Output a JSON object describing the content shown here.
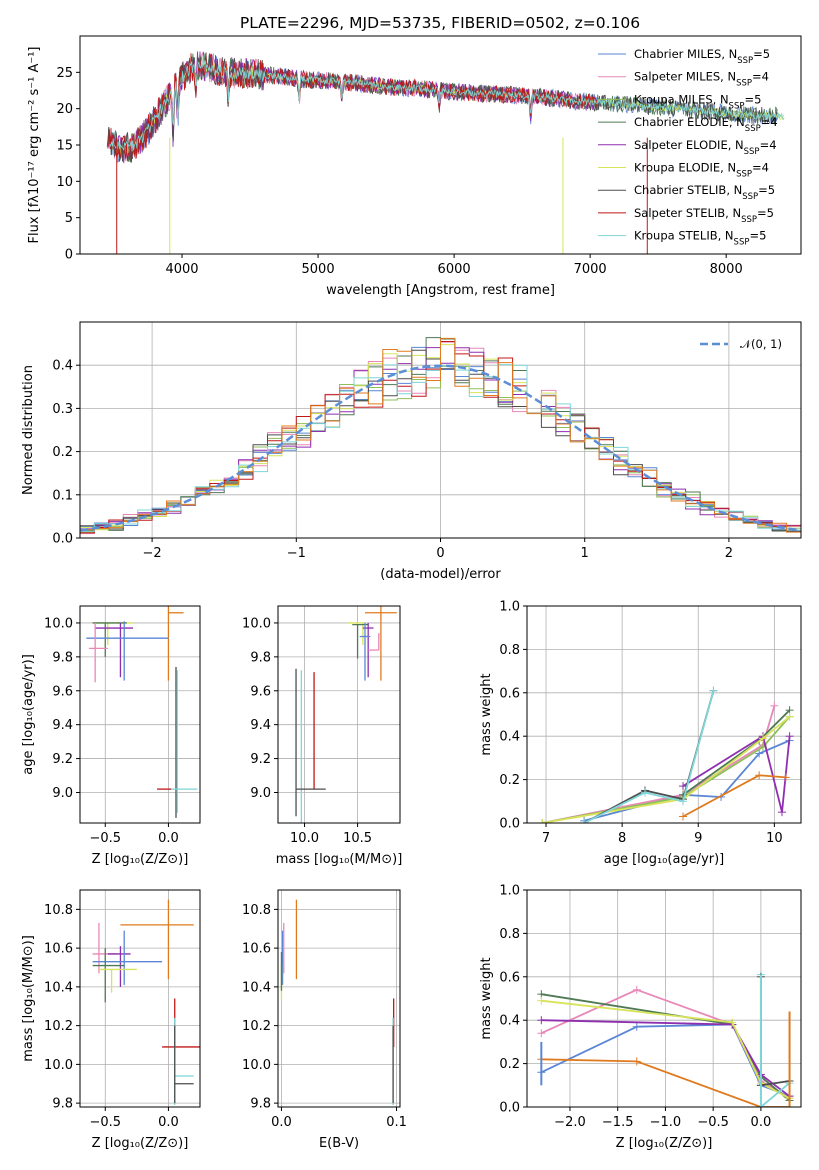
{
  "title": "PLATE=2296, MJD=53735, FIBERID=0502, z=0.106",
  "colors": {
    "Chabrier MILES": "#5b86d6",
    "Salpeter MILES": "#e887b8",
    "Kroupa MILES": "#8fbf5a",
    "Chabrier ELODIE": "#4f7a55",
    "Salpeter ELODIE": "#8e2fb0",
    "Kroupa ELODIE": "#d7e35a",
    "Chabrier STELIB": "#4d4d4d",
    "Salpeter STELIB": "#c01818",
    "Kroupa STELIB": "#7fd5d8",
    "orange": "#e07a1f",
    "gauss": "#5b8ed6",
    "grid": "#b0b0b0"
  },
  "chart_data": [
    {
      "id": "spectrum",
      "type": "line",
      "xlabel": "wavelength [Angstrom, rest frame]",
      "ylabel": "Flux [fλ10⁻¹⁷ erg cm⁻² s⁻¹ A⁻¹]",
      "xlim": [
        3250,
        8550
      ],
      "ylim": [
        0,
        30
      ],
      "xticks": [
        4000,
        5000,
        6000,
        7000,
        8000
      ],
      "yticks": [
        0,
        5,
        10,
        15,
        20,
        25
      ],
      "grid": false,
      "legend_position": "top-right",
      "continuum": {
        "x": [
          3450,
          3550,
          3650,
          3750,
          3850,
          3950,
          4050,
          4150,
          4300,
          4500,
          4700,
          4900,
          5100,
          5300,
          5500,
          5700,
          5900,
          6100,
          6300,
          6500,
          6700,
          6900,
          7100,
          7300,
          7500,
          7700,
          7900,
          8100,
          8300
        ],
        "y": [
          15.5,
          14.5,
          14.8,
          17,
          20,
          23,
          25.5,
          26,
          25,
          24.8,
          24.5,
          24,
          23.8,
          23.5,
          23,
          22.8,
          22.5,
          22.2,
          22,
          21.8,
          21.5,
          21,
          20.8,
          20.5,
          20.2,
          20,
          19.6,
          19.2,
          19
        ]
      },
      "series": [
        {
          "name": "Chabrier MILES",
          "nssp": "5"
        },
        {
          "name": "Salpeter MILES",
          "nssp": "4"
        },
        {
          "name": "Kroupa MILES",
          "nssp": "5"
        },
        {
          "name": "Chabrier ELODIE",
          "nssp": "4"
        },
        {
          "name": "Salpeter ELODIE",
          "nssp": "4"
        },
        {
          "name": "Kroupa ELODIE",
          "nssp": "4"
        },
        {
          "name": "Chabrier STELIB",
          "nssp": "5"
        },
        {
          "name": "Salpeter STELIB",
          "nssp": "5"
        },
        {
          "name": "Kroupa STELIB",
          "nssp": "5"
        }
      ]
    },
    {
      "id": "residuals",
      "type": "histogram",
      "xlabel": "(data-model)/error",
      "ylabel": "Normed distribution",
      "xlim": [
        -2.5,
        2.5
      ],
      "ylim": [
        0,
        0.5
      ],
      "xticks": [
        -2,
        -1,
        0,
        1,
        2
      ],
      "yticks": [
        0.0,
        0.1,
        0.2,
        0.3,
        0.4
      ],
      "grid": true,
      "legend": "𝒩(0, 1)",
      "legend_position": "top-right",
      "bin_width": 0.1
    },
    {
      "id": "age_vs_Z",
      "type": "scatter",
      "xlabel": "Z [log₁₀(Z/Z⊙)]",
      "ylabel": "age  [log₁₀(age/yr)]",
      "xlim": [
        -0.7,
        0.25
      ],
      "ylim": [
        8.82,
        10.1
      ],
      "xticks": [
        -0.5,
        0.0
      ],
      "yticks": [
        9.0,
        9.2,
        9.4,
        9.6,
        9.8,
        10.0
      ],
      "grid": true,
      "points": [
        {
          "color": "orange",
          "x": 0.0,
          "xerr": [
            0.0,
            0.12
          ],
          "y": 10.06,
          "yerr": [
            0.4,
            0.06
          ]
        },
        {
          "color": "Kroupa ELODIE",
          "x": -0.48,
          "xerr": [
            0.12,
            0.2
          ],
          "y": 10.0,
          "yerr": [
            0.13,
            0.0
          ]
        },
        {
          "color": "Chabrier ELODIE",
          "x": -0.5,
          "xerr": [
            0.1,
            0.17
          ],
          "y": 10.0,
          "yerr": [
            0.2,
            0.0
          ]
        },
        {
          "color": "Salpeter ELODIE",
          "x": -0.38,
          "xerr": [
            0.2,
            0.1
          ],
          "y": 9.97,
          "yerr": [
            0.29,
            0.03
          ]
        },
        {
          "color": "Chabrier MILES",
          "x": -0.35,
          "xerr": [
            0.3,
            0.35
          ],
          "y": 9.91,
          "yerr": [
            0.25,
            0.1
          ]
        },
        {
          "color": "Salpeter MILES",
          "x": -0.58,
          "xerr": [
            0.05,
            0.1
          ],
          "y": 9.85,
          "yerr": [
            0.2,
            0.15
          ]
        },
        {
          "color": "Salpeter STELIB",
          "x": 0.03,
          "xerr": [
            0.12,
            0.0
          ],
          "y": 9.02,
          "yerr": [
            0.0,
            0.0
          ]
        },
        {
          "color": "Chabrier STELIB",
          "x": 0.06,
          "xerr": [
            0.0,
            0.0
          ],
          "y": 9.02,
          "yerr": [
            0.17,
            0.72
          ]
        },
        {
          "color": "Kroupa STELIB",
          "x": 0.07,
          "xerr": [
            0.05,
            0.16
          ],
          "y": 9.02,
          "yerr": [
            0.14,
            0.7
          ]
        }
      ]
    },
    {
      "id": "age_vs_mass",
      "type": "scatter",
      "xlabel": "mass [log₁₀(M/M⊙)]",
      "xlim": [
        9.75,
        10.9
      ],
      "ylim": [
        8.82,
        10.1
      ],
      "xticks": [
        10.0,
        10.5
      ],
      "yticks": [
        9.0,
        9.2,
        9.4,
        9.6,
        9.8,
        10.0
      ],
      "grid": true,
      "points": [
        {
          "color": "orange",
          "x": 10.72,
          "xerr": [
            0.15,
            0.15
          ],
          "y": 10.06,
          "yerr": [
            0.4,
            0.06
          ]
        },
        {
          "color": "Kroupa ELODIE",
          "x": 10.55,
          "xerr": [
            0.15,
            0.0
          ],
          "y": 10.0,
          "yerr": [
            0.13,
            0.0
          ]
        },
        {
          "color": "Chabrier ELODIE",
          "x": 10.5,
          "xerr": [
            0.05,
            0.1
          ],
          "y": 9.99,
          "yerr": [
            0.2,
            0.0
          ]
        },
        {
          "color": "Salpeter ELODIE",
          "x": 10.6,
          "xerr": [
            0.05,
            0.05
          ],
          "y": 9.97,
          "yerr": [
            0.29,
            0.03
          ]
        },
        {
          "color": "Chabrier MILES",
          "x": 10.57,
          "xerr": [
            0.05,
            0.05
          ],
          "y": 9.92,
          "yerr": [
            0.26,
            0.08
          ]
        },
        {
          "color": "Salpeter MILES",
          "x": 10.7,
          "xerr": [
            0.1,
            0.0
          ],
          "y": 9.84,
          "yerr": [
            0.0,
            0.1
          ]
        },
        {
          "color": "Salpeter STELIB",
          "x": 10.09,
          "xerr": [
            0.0,
            0.0
          ],
          "y": 9.02,
          "yerr": [
            0.0,
            0.69
          ]
        },
        {
          "color": "Chabrier STELIB",
          "x": 9.92,
          "xerr": [
            0.0,
            0.0
          ],
          "y": 9.02,
          "yerr": [
            0.16,
            0.71
          ]
        },
        {
          "color": "Kroupa STELIB",
          "x": 9.97,
          "xerr": [
            0.0,
            0.0
          ],
          "y": 9.02,
          "yerr": [
            0.2,
            0.7
          ]
        },
        {
          "color": "Chabrier STELIB",
          "x": 10.05,
          "xerr": [
            0.13,
            0.15
          ],
          "y": 9.02,
          "yerr": [
            0.0,
            0.0
          ]
        }
      ]
    },
    {
      "id": "weight_vs_age",
      "type": "line",
      "xlabel": "age  [log₁₀(age/yr)]",
      "ylabel": "mass weight",
      "xlim": [
        6.75,
        10.35
      ],
      "ylim": [
        0,
        1.0
      ],
      "xticks": [
        7,
        8,
        9,
        10
      ],
      "yticks": [
        0.0,
        0.2,
        0.4,
        0.6,
        0.8,
        1.0
      ],
      "grid": true,
      "series": [
        {
          "color": "Chabrier MILES",
          "x": [
            7.5,
            8.8,
            9.3,
            9.8,
            10.2
          ],
          "y": [
            0.01,
            0.13,
            0.12,
            0.32,
            0.38
          ]
        },
        {
          "color": "Salpeter MILES",
          "x": [
            6.95,
            8.8,
            9.85,
            10.0
          ],
          "y": [
            0.0,
            0.13,
            0.36,
            0.54
          ]
        },
        {
          "color": "Kroupa MILES",
          "x": [
            6.95,
            8.8,
            9.85,
            10.2
          ],
          "y": [
            0.0,
            0.12,
            0.35,
            0.49
          ]
        },
        {
          "color": "Chabrier ELODIE",
          "x": [
            8.8,
            9.8,
            10.2
          ],
          "y": [
            0.13,
            0.38,
            0.52
          ]
        },
        {
          "color": "Salpeter ELODIE",
          "x": [
            8.8,
            9.85,
            10.1,
            10.2
          ],
          "y": [
            0.17,
            0.4,
            0.05,
            0.4
          ]
        },
        {
          "color": "Kroupa ELODIE",
          "x": [
            6.95,
            8.8,
            9.85,
            10.2
          ],
          "y": [
            0.0,
            0.11,
            0.39,
            0.49
          ]
        },
        {
          "color": "Chabrier STELIB",
          "x": [
            7.5,
            8.3,
            8.8,
            9.2
          ],
          "y": [
            0.0,
            0.15,
            0.11,
            0.61
          ]
        },
        {
          "color": "Kroupa STELIB",
          "x": [
            7.5,
            8.3,
            8.8,
            9.2
          ],
          "y": [
            0.0,
            0.14,
            0.1,
            0.61
          ]
        },
        {
          "color": "orange",
          "x": [
            8.8,
            9.8,
            10.15
          ],
          "y": [
            0.03,
            0.22,
            0.21
          ]
        }
      ]
    },
    {
      "id": "mass_vs_Z",
      "type": "scatter",
      "xlabel": "Z [log₁₀(Z/Z⊙)]",
      "ylabel": "mass [log₁₀(M/M⊙)]",
      "xlim": [
        -0.7,
        0.25
      ],
      "ylim": [
        9.78,
        10.9
      ],
      "xticks": [
        -0.5,
        0.0
      ],
      "yticks": [
        9.8,
        10.0,
        10.2,
        10.4,
        10.6,
        10.8
      ],
      "grid": true,
      "points": [
        {
          "color": "orange",
          "x": 0.0,
          "xerr": [
            0.38,
            0.2
          ],
          "y": 10.72,
          "yerr": [
            0.28,
            0.13
          ]
        },
        {
          "color": "Salpeter MILES",
          "x": -0.55,
          "xerr": [
            0.05,
            0.15
          ],
          "y": 10.57,
          "yerr": [
            0.1,
            0.16
          ]
        },
        {
          "color": "Salpeter ELODIE",
          "x": -0.38,
          "xerr": [
            0.1,
            0.08
          ],
          "y": 10.57,
          "yerr": [
            0.17,
            0.04
          ]
        },
        {
          "color": "Chabrier MILES",
          "x": -0.35,
          "xerr": [
            0.25,
            0.3
          ],
          "y": 10.53,
          "yerr": [
            0.12,
            0.16
          ]
        },
        {
          "color": "Chabrier ELODIE",
          "x": -0.5,
          "xerr": [
            0.1,
            0.15
          ],
          "y": 10.51,
          "yerr": [
            0.19,
            0.09
          ]
        },
        {
          "color": "Kroupa ELODIE",
          "x": -0.45,
          "xerr": [
            0.1,
            0.2
          ],
          "y": 10.49,
          "yerr": [
            0.12,
            0.0
          ]
        },
        {
          "color": "Salpeter STELIB",
          "x": 0.05,
          "xerr": [
            0.1,
            0.2
          ],
          "y": 10.09,
          "yerr": [
            0.0,
            0.25
          ]
        },
        {
          "color": "Kroupa STELIB",
          "x": 0.05,
          "xerr": [
            0.0,
            0.15
          ],
          "y": 9.94,
          "yerr": [
            0.15,
            0.3
          ]
        },
        {
          "color": "Chabrier STELIB",
          "x": 0.05,
          "xerr": [
            0.0,
            0.15
          ],
          "y": 9.9,
          "yerr": [
            0.1,
            0.3
          ]
        }
      ]
    },
    {
      "id": "mass_vs_EBV",
      "type": "scatter",
      "xlabel": "E(B-V)",
      "xlim": [
        -0.003,
        0.103
      ],
      "ylim": [
        9.78,
        10.9
      ],
      "xticks": [
        0.0,
        0.1
      ],
      "yticks": [
        9.8,
        10.0,
        10.2,
        10.4,
        10.6,
        10.8
      ],
      "grid": true,
      "points": [
        {
          "color": "orange",
          "x": 0.013,
          "xerr": [
            0.0,
            0.0
          ],
          "y": 10.72,
          "yerr": [
            0.28,
            0.13
          ]
        },
        {
          "color": "Chabrier MILES",
          "x": 0.001,
          "xerr": [
            0.0,
            0.0
          ],
          "y": 10.53,
          "yerr": [
            0.12,
            0.16
          ]
        },
        {
          "color": "Salpeter MILES",
          "x": 0.002,
          "xerr": [
            0.0,
            0.0
          ],
          "y": 10.57,
          "yerr": [
            0.1,
            0.16
          ]
        },
        {
          "color": "Kroupa ELODIE",
          "x": 0.0,
          "xerr": [
            0.0,
            0.0
          ],
          "y": 10.45,
          "yerr": [
            0.12,
            0.06
          ]
        },
        {
          "color": "Chabrier ELODIE",
          "x": 0.0,
          "xerr": [
            0.0,
            0.0
          ],
          "y": 10.48,
          "yerr": [
            0.1,
            0.1
          ]
        },
        {
          "color": "Salpeter STELIB",
          "x": 0.0975,
          "xerr": [
            0.0,
            0.0
          ],
          "y": 10.09,
          "yerr": [
            0.0,
            0.25
          ]
        },
        {
          "color": "Kroupa STELIB",
          "x": 0.097,
          "xerr": [
            0.0,
            0.0
          ],
          "y": 9.94,
          "yerr": [
            0.15,
            0.3
          ]
        },
        {
          "color": "Chabrier STELIB",
          "x": 0.097,
          "xerr": [
            0.0,
            0.0
          ],
          "y": 9.9,
          "yerr": [
            0.1,
            0.3
          ]
        }
      ]
    },
    {
      "id": "weight_vs_Z",
      "type": "line",
      "xlabel": "Z [log₁₀(Z/Z⊙)]",
      "ylabel": "mass weight",
      "xlim": [
        -2.45,
        0.42
      ],
      "ylim": [
        0,
        1.0
      ],
      "xticks": [
        -2.0,
        -1.5,
        -1.0,
        -0.5,
        0.0
      ],
      "yticks": [
        0.0,
        0.2,
        0.4,
        0.6,
        0.8,
        1.0
      ],
      "grid": true,
      "series": [
        {
          "color": "Chabrier MILES",
          "x": [
            -2.3,
            -1.3,
            -0.3,
            0.0,
            0.3
          ],
          "y": [
            0.16,
            0.37,
            0.38,
            0.1,
            0.05
          ]
        },
        {
          "color": "Salpeter MILES",
          "x": [
            -2.3,
            -1.3,
            -0.3,
            0.0,
            0.3
          ],
          "y": [
            0.34,
            0.54,
            0.38,
            0.12,
            0.04
          ]
        },
        {
          "color": "Chabrier ELODIE",
          "x": [
            -2.3,
            -0.3,
            0.0,
            0.3
          ],
          "y": [
            0.52,
            0.38,
            0.14,
            0.03
          ]
        },
        {
          "color": "Salpeter ELODIE",
          "x": [
            -2.3,
            -0.3,
            0.0,
            0.3
          ],
          "y": [
            0.4,
            0.38,
            0.15,
            0.05
          ]
        },
        {
          "color": "Kroupa ELODIE",
          "x": [
            -2.3,
            -0.3,
            0.0,
            0.3
          ],
          "y": [
            0.49,
            0.39,
            0.11,
            0.04
          ]
        },
        {
          "color": "orange",
          "x": [
            -2.3,
            -1.3,
            0.0,
            0.3
          ],
          "y": [
            0.22,
            0.21,
            0.0,
            0.0
          ]
        },
        {
          "color": "Kroupa STELIB",
          "x": [
            0.0,
            0.0,
            0.3
          ],
          "y": [
            0.61,
            0.0,
            0.11
          ]
        },
        {
          "color": "Chabrier STELIB",
          "x": [
            0.0,
            0.0,
            0.3
          ],
          "y": [
            0.6,
            0.1,
            0.12
          ]
        }
      ],
      "errorbars": [
        {
          "color": "Kroupa STELIB",
          "x": 0.0,
          "y1": 0.0,
          "y2": 0.61
        },
        {
          "color": "orange",
          "x": 0.3,
          "y1": 0.0,
          "y2": 0.44
        },
        {
          "color": "Chabrier MILES",
          "x": -2.3,
          "y1": 0.1,
          "y2": 0.3
        }
      ]
    }
  ]
}
